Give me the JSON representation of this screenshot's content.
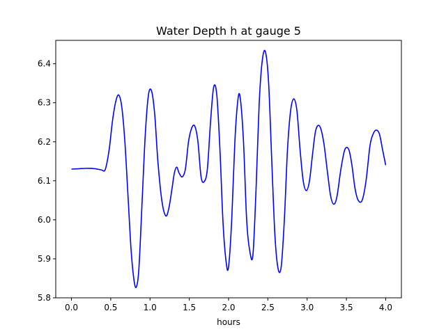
{
  "chart_data": {
    "type": "line",
    "title": "Water Depth h at gauge 5",
    "xlabel": "hours",
    "ylabel": "",
    "xlim": [
      -0.2,
      4.2
    ],
    "ylim": [
      5.8,
      6.46
    ],
    "xticks": [
      0.0,
      0.5,
      1.0,
      1.5,
      2.0,
      2.5,
      3.0,
      3.5,
      4.0
    ],
    "xtick_labels": [
      "0.0",
      "0.5",
      "1.0",
      "1.5",
      "2.0",
      "2.5",
      "3.0",
      "3.5",
      "4.0"
    ],
    "yticks": [
      5.8,
      5.9,
      6.0,
      6.1,
      6.2,
      6.3,
      6.4
    ],
    "ytick_labels": [
      "5.8",
      "5.9",
      "6.0",
      "6.1",
      "6.2",
      "6.3",
      "6.4"
    ],
    "grid": false,
    "color": "#0000ff",
    "series": [
      {
        "x": [
          0.0,
          0.1,
          0.2,
          0.3,
          0.38,
          0.43,
          0.48,
          0.52,
          0.56,
          0.6,
          0.64,
          0.68,
          0.72,
          0.76,
          0.8,
          0.83,
          0.86,
          0.9,
          0.94,
          0.98,
          1.02,
          1.06,
          1.1,
          1.15,
          1.2,
          1.24,
          1.28,
          1.31,
          1.34,
          1.37,
          1.41,
          1.45,
          1.49,
          1.53,
          1.57,
          1.61,
          1.65,
          1.69,
          1.73,
          1.77,
          1.81,
          1.85,
          1.89,
          1.93,
          1.97,
          2.0,
          2.04,
          2.08,
          2.12,
          2.15,
          2.19,
          2.23,
          2.27,
          2.31,
          2.35,
          2.39,
          2.43,
          2.47,
          2.51,
          2.55,
          2.59,
          2.63,
          2.67,
          2.71,
          2.75,
          2.79,
          2.83,
          2.87,
          2.91,
          2.95,
          2.99,
          3.03,
          3.07,
          3.11,
          3.16,
          3.21,
          3.26,
          3.3,
          3.34,
          3.38,
          3.43,
          3.48,
          3.53,
          3.57,
          3.61,
          3.65,
          3.7,
          3.75,
          3.8,
          3.84,
          3.88,
          3.92,
          3.96,
          4.0
        ],
        "y": [
          6.13,
          6.131,
          6.132,
          6.131,
          6.128,
          6.129,
          6.18,
          6.25,
          6.3,
          6.32,
          6.29,
          6.2,
          6.06,
          5.92,
          5.84,
          5.83,
          5.88,
          6.05,
          6.22,
          6.32,
          6.33,
          6.27,
          6.15,
          6.05,
          6.01,
          6.03,
          6.08,
          6.12,
          6.135,
          6.12,
          6.11,
          6.13,
          6.2,
          6.235,
          6.24,
          6.2,
          6.11,
          6.098,
          6.13,
          6.25,
          6.34,
          6.32,
          6.18,
          5.99,
          5.89,
          5.88,
          6.0,
          6.2,
          6.31,
          6.31,
          6.2,
          6.0,
          5.92,
          5.91,
          6.08,
          6.3,
          6.41,
          6.43,
          6.35,
          6.15,
          5.96,
          5.875,
          5.88,
          6.0,
          6.18,
          6.28,
          6.31,
          6.28,
          6.18,
          6.1,
          6.075,
          6.1,
          6.17,
          6.23,
          6.24,
          6.2,
          6.12,
          6.06,
          6.04,
          6.06,
          6.13,
          6.18,
          6.18,
          6.14,
          6.08,
          6.05,
          6.05,
          6.1,
          6.19,
          6.22,
          6.23,
          6.22,
          6.18,
          6.14
        ]
      }
    ]
  }
}
